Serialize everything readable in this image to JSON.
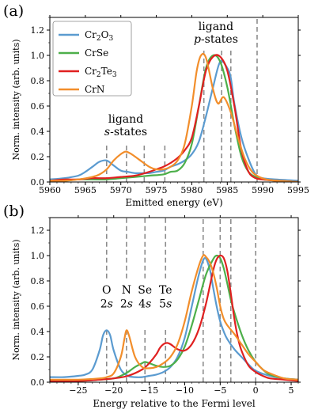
{
  "chart_data": [
    {
      "panel_label": "(a)",
      "type": "line",
      "xlabel": "Emitted energy (eV)",
      "ylabel": "Norm. intensity (arb. units)",
      "xlim": [
        5960,
        5995
      ],
      "ylim": [
        0,
        1.3
      ],
      "xticks": [
        "5960",
        "5965",
        "5970",
        "5975",
        "5980",
        "5985",
        "5990",
        "5995"
      ],
      "yticks": [
        "0.0",
        "0.2",
        "0.4",
        "0.6",
        "0.8",
        "1.0",
        "1.2"
      ],
      "legend": {
        "position": "top-left",
        "entries": [
          "Cr2O3",
          "CrSe",
          "Cr2Te3",
          "CrN"
        ]
      },
      "annotations": [
        {
          "text": "ligand",
          "x": 5970.7,
          "y": 0.47
        },
        {
          "text": "s-states",
          "x": 5970.7,
          "y": 0.37
        },
        {
          "text": "ligand",
          "x": 5983.4,
          "y": 1.2
        },
        {
          "text": "p-states",
          "x": 5983.4,
          "y": 1.1
        }
      ],
      "vlines": [
        {
          "x": 5968.0,
          "y0": 0,
          "y1": 0.3
        },
        {
          "x": 5970.8,
          "y0": 0,
          "y1": 0.3
        },
        {
          "x": 5973.3,
          "y0": 0,
          "y1": 0.3
        },
        {
          "x": 5976.2,
          "y0": 0,
          "y1": 0.3
        },
        {
          "x": 5981.7,
          "y0": 0,
          "y1": 1.06
        },
        {
          "x": 5984.2,
          "y0": 0,
          "y1": 1.06
        },
        {
          "x": 5985.5,
          "y0": 0,
          "y1": 1.06
        },
        {
          "x": 5989.2,
          "y0": 0,
          "y1": 1.3
        }
      ],
      "series": [
        {
          "name": "Cr2O3",
          "color": "#5b9bd0",
          "x": [
            5960,
            5962,
            5964,
            5965,
            5966,
            5967,
            5968,
            5969,
            5970,
            5971,
            5972,
            5973,
            5974,
            5975,
            5976,
            5977,
            5978,
            5979,
            5980,
            5981,
            5982,
            5983,
            5984,
            5985,
            5985.5,
            5986,
            5987,
            5988,
            5989,
            5990,
            5992,
            5995
          ],
          "y": [
            0.02,
            0.03,
            0.05,
            0.08,
            0.12,
            0.16,
            0.17,
            0.13,
            0.09,
            0.08,
            0.07,
            0.07,
            0.07,
            0.08,
            0.09,
            0.12,
            0.14,
            0.17,
            0.22,
            0.32,
            0.52,
            0.75,
            0.95,
            0.9,
            0.82,
            0.62,
            0.35,
            0.18,
            0.06,
            0.03,
            0.02,
            0.01
          ]
        },
        {
          "name": "CrSe",
          "color": "#4daf4a",
          "x": [
            5960,
            5962,
            5964,
            5966,
            5968,
            5970,
            5972,
            5974,
            5976,
            5977,
            5978,
            5979,
            5980,
            5981,
            5982,
            5983,
            5984,
            5985,
            5986,
            5987,
            5988,
            5989,
            5990,
            5992,
            5995
          ],
          "y": [
            0.01,
            0.01,
            0.02,
            0.02,
            0.02,
            0.03,
            0.04,
            0.05,
            0.06,
            0.08,
            0.09,
            0.15,
            0.3,
            0.6,
            0.9,
            1.0,
            0.95,
            0.75,
            0.45,
            0.2,
            0.08,
            0.04,
            0.02,
            0.01,
            0.0
          ]
        },
        {
          "name": "Cr2Te3",
          "color": "#e02020",
          "x": [
            5960,
            5962,
            5964,
            5966,
            5968,
            5970,
            5972,
            5974,
            5975,
            5976,
            5977,
            5978,
            5979,
            5980,
            5981,
            5982,
            5983,
            5984,
            5985,
            5986,
            5987,
            5988,
            5989,
            5990,
            5992,
            5995
          ],
          "y": [
            0.01,
            0.02,
            0.02,
            0.03,
            0.03,
            0.04,
            0.05,
            0.08,
            0.1,
            0.12,
            0.15,
            0.19,
            0.25,
            0.35,
            0.6,
            0.88,
            0.99,
            0.99,
            0.88,
            0.6,
            0.25,
            0.08,
            0.03,
            0.02,
            0.01,
            0.0
          ]
        },
        {
          "name": "CrN",
          "color": "#f28e2b",
          "x": [
            5960,
            5962,
            5964,
            5966,
            5967,
            5968,
            5969,
            5970,
            5970.7,
            5971.5,
            5972.5,
            5974,
            5975,
            5976,
            5977,
            5978,
            5979,
            5980,
            5980.7,
            5981.3,
            5982,
            5983,
            5983.7,
            5984.5,
            5985.5,
            5986.5,
            5987.5,
            5988.5,
            5989.5,
            5990.5,
            5992,
            5995
          ],
          "y": [
            0.01,
            0.01,
            0.02,
            0.04,
            0.06,
            0.1,
            0.17,
            0.22,
            0.24,
            0.22,
            0.18,
            0.12,
            0.1,
            0.1,
            0.12,
            0.17,
            0.3,
            0.6,
            0.88,
            1.0,
            0.98,
            0.73,
            0.62,
            0.67,
            0.55,
            0.35,
            0.18,
            0.08,
            0.04,
            0.02,
            0.01,
            0.0
          ]
        }
      ]
    },
    {
      "panel_label": "(b)",
      "type": "line",
      "xlabel": "Energy relative to the Fermi level",
      "ylabel": "Norm. intensity (arb. units)",
      "xlim": [
        -29,
        6
      ],
      "ylim": [
        0,
        1.3
      ],
      "xticks": [
        "−25",
        "−20",
        "−15",
        "−10",
        "−5",
        "0",
        "5"
      ],
      "yticks": [
        "0.0",
        "0.2",
        "0.4",
        "0.6",
        "0.8",
        "1.0",
        "1.2"
      ],
      "annotations": [
        {
          "text": "O",
          "x": -21.0,
          "y": 0.7
        },
        {
          "text": "2s",
          "x": -21.0,
          "y": 0.59
        },
        {
          "text": "N",
          "x": -18.2,
          "y": 0.7
        },
        {
          "text": "2s",
          "x": -18.2,
          "y": 0.59
        },
        {
          "text": "Se",
          "x": -15.6,
          "y": 0.7
        },
        {
          "text": "4s",
          "x": -15.6,
          "y": 0.59
        },
        {
          "text": "Te",
          "x": -12.7,
          "y": 0.7
        },
        {
          "text": "5s",
          "x": -12.7,
          "y": 0.59
        }
      ],
      "vlines": [
        {
          "x": -21.0,
          "y0": 0.82,
          "y1": 1.3
        },
        {
          "x": -21.0,
          "y0": 0.0,
          "y1": 0.42
        },
        {
          "x": -18.2,
          "y0": 0.82,
          "y1": 1.3
        },
        {
          "x": -18.2,
          "y0": 0.0,
          "y1": 0.42
        },
        {
          "x": -15.6,
          "y0": 0.82,
          "y1": 1.3
        },
        {
          "x": -15.6,
          "y0": 0.0,
          "y1": 0.42
        },
        {
          "x": -12.7,
          "y0": 0.82,
          "y1": 1.3
        },
        {
          "x": -12.7,
          "y0": 0.0,
          "y1": 0.42
        },
        {
          "x": -7.4,
          "y0": 0.0,
          "y1": 1.3
        },
        {
          "x": -5.0,
          "y0": 0.0,
          "y1": 1.3
        },
        {
          "x": -3.5,
          "y0": 0.0,
          "y1": 1.3
        },
        {
          "x": 0.0,
          "y0": 0.0,
          "y1": 1.3
        }
      ],
      "series": [
        {
          "name": "Cr2O3",
          "color": "#5b9bd0",
          "x": [
            -29,
            -27,
            -25,
            -24,
            -23,
            -22,
            -21.5,
            -21,
            -20.5,
            -20,
            -19,
            -18,
            -17,
            -16,
            -15,
            -14,
            -13,
            -12,
            -11,
            -10,
            -9,
            -8,
            -7.2,
            -6.5,
            -6,
            -5.5,
            -5,
            -4.5,
            -4,
            -3,
            -2,
            -1,
            0,
            2,
            4,
            6
          ],
          "y": [
            0.04,
            0.04,
            0.05,
            0.06,
            0.1,
            0.25,
            0.37,
            0.41,
            0.37,
            0.25,
            0.1,
            0.05,
            0.04,
            0.04,
            0.05,
            0.06,
            0.08,
            0.12,
            0.2,
            0.35,
            0.6,
            0.85,
            0.98,
            0.9,
            0.75,
            0.6,
            0.48,
            0.4,
            0.34,
            0.26,
            0.2,
            0.14,
            0.09,
            0.05,
            0.03,
            0.02
          ]
        },
        {
          "name": "CrSe",
          "color": "#4daf4a",
          "x": [
            -29,
            -25,
            -22,
            -20,
            -19,
            -18,
            -17,
            -16,
            -15.6,
            -15,
            -14,
            -13,
            -12,
            -11,
            -10,
            -9,
            -8,
            -7,
            -6,
            -5.5,
            -5,
            -4.5,
            -4,
            -3.5,
            -3,
            -2,
            -1,
            0,
            1,
            2,
            4,
            6
          ],
          "y": [
            0.01,
            0.01,
            0.02,
            0.03,
            0.05,
            0.08,
            0.12,
            0.15,
            0.16,
            0.15,
            0.13,
            0.12,
            0.13,
            0.18,
            0.28,
            0.45,
            0.65,
            0.85,
            0.97,
            1.0,
            0.98,
            0.9,
            0.78,
            0.65,
            0.55,
            0.38,
            0.25,
            0.16,
            0.1,
            0.06,
            0.03,
            0.02
          ]
        },
        {
          "name": "Cr2Te3",
          "color": "#e02020",
          "x": [
            -29,
            -25,
            -22,
            -20,
            -18,
            -16,
            -15,
            -14,
            -13.5,
            -13,
            -12.5,
            -12,
            -11,
            -10,
            -9,
            -8,
            -7,
            -6,
            -5.5,
            -5,
            -4.5,
            -4,
            -3.5,
            -3,
            -2.5,
            -2,
            -1,
            0,
            1,
            2,
            4,
            6
          ],
          "y": [
            0.01,
            0.01,
            0.02,
            0.03,
            0.05,
            0.1,
            0.15,
            0.22,
            0.27,
            0.3,
            0.31,
            0.3,
            0.26,
            0.25,
            0.3,
            0.42,
            0.62,
            0.88,
            0.97,
            1.0,
            0.98,
            0.88,
            0.7,
            0.5,
            0.35,
            0.25,
            0.13,
            0.08,
            0.05,
            0.03,
            0.02,
            0.01
          ]
        },
        {
          "name": "CrN",
          "color": "#f28e2b",
          "x": [
            -29,
            -25,
            -22,
            -21,
            -20,
            -19,
            -18.5,
            -18.2,
            -17.8,
            -17,
            -16,
            -15,
            -14,
            -13,
            -12,
            -11,
            -10,
            -9,
            -8,
            -7.4,
            -7,
            -6.5,
            -6,
            -5.5,
            -5,
            -4.5,
            -4,
            -3,
            -2,
            -1,
            0,
            1,
            2,
            4,
            6
          ],
          "y": [
            0.02,
            0.02,
            0.03,
            0.04,
            0.07,
            0.2,
            0.34,
            0.41,
            0.36,
            0.2,
            0.12,
            0.11,
            0.12,
            0.15,
            0.2,
            0.3,
            0.48,
            0.72,
            0.92,
            1.0,
            0.99,
            0.95,
            0.87,
            0.75,
            0.6,
            0.5,
            0.45,
            0.38,
            0.3,
            0.22,
            0.16,
            0.1,
            0.07,
            0.03,
            0.02
          ]
        }
      ]
    }
  ]
}
